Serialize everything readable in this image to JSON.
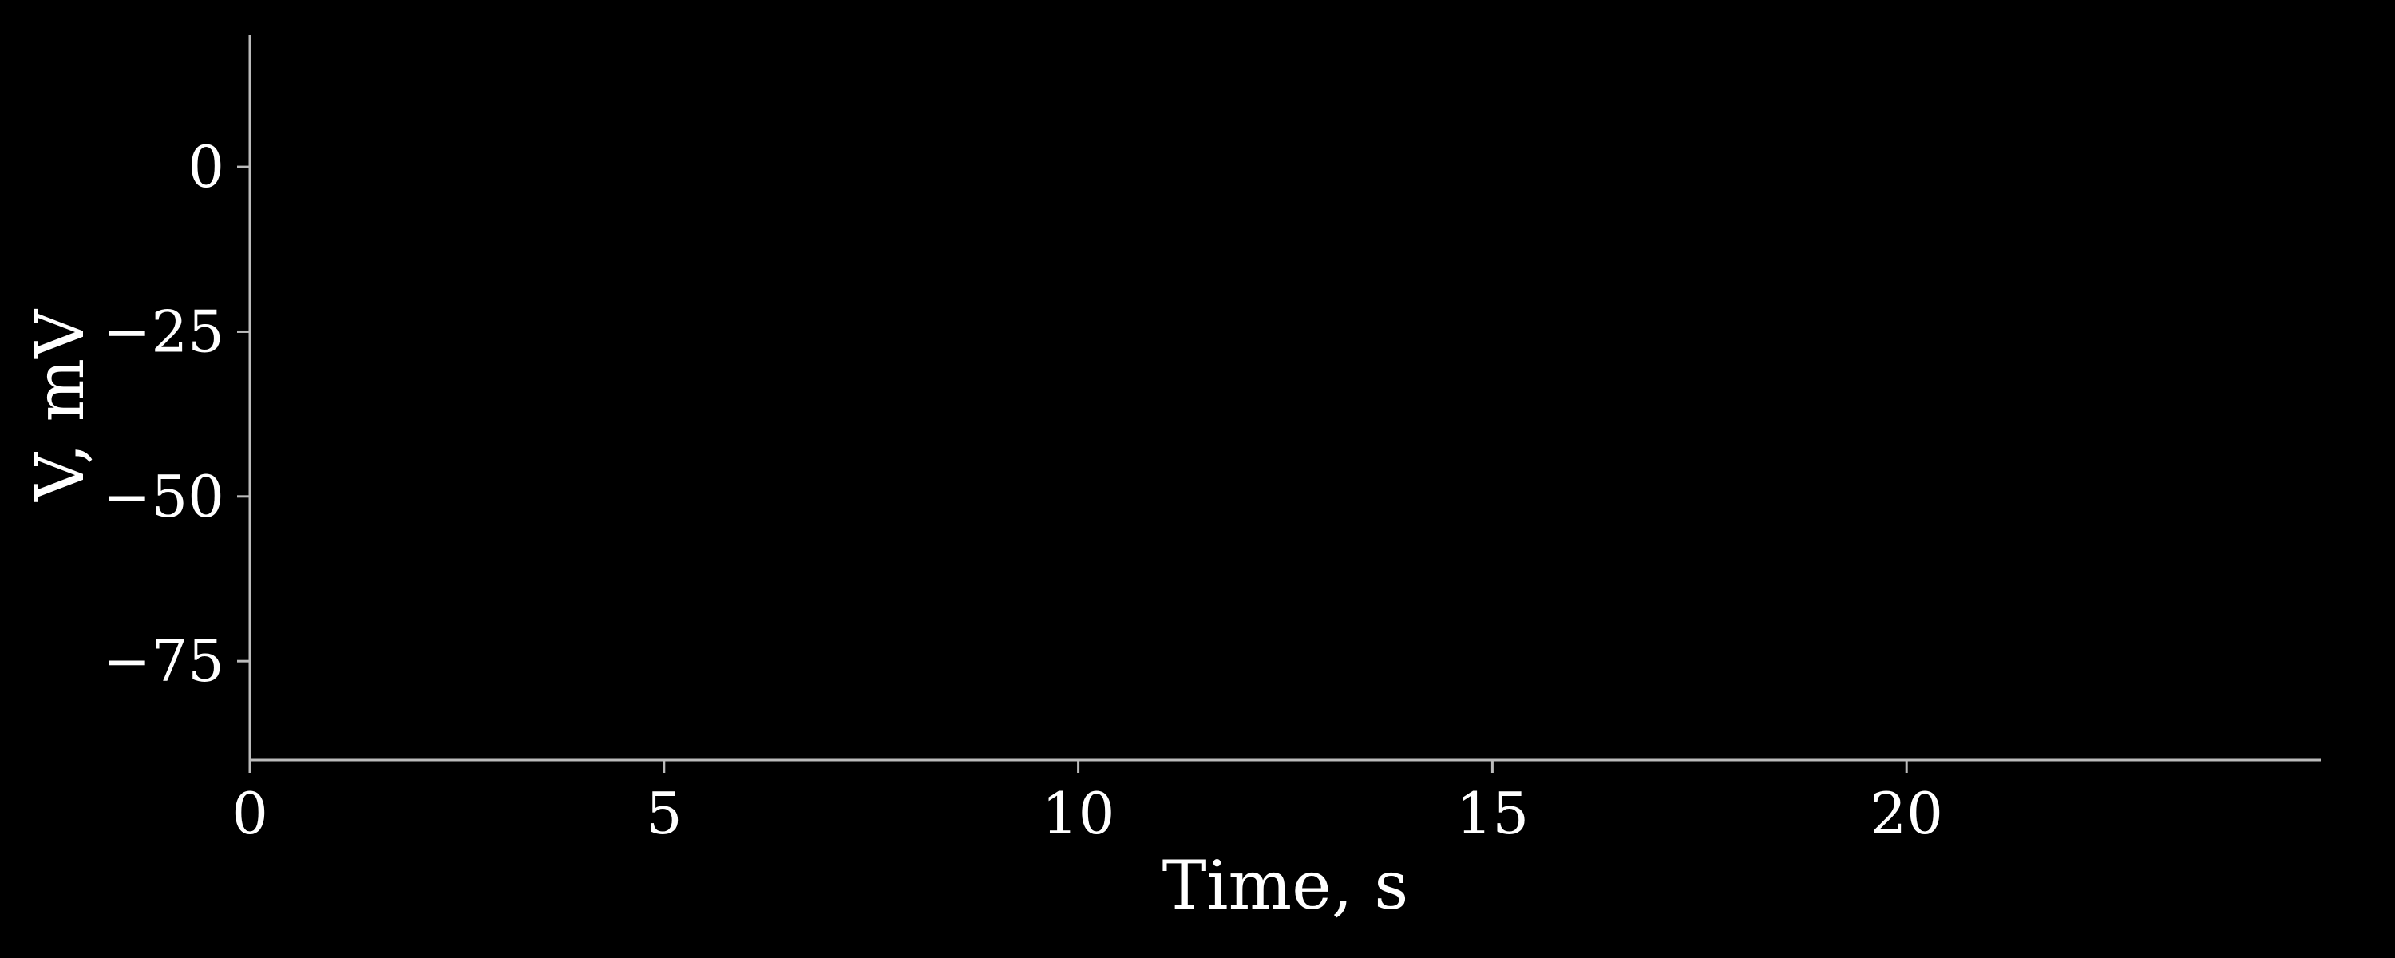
{
  "chart_data": {
    "type": "line",
    "title": "",
    "xlabel": "Time, s",
    "ylabel": "V, mV",
    "xlim": [
      0,
      25
    ],
    "ylim": [
      -90,
      20
    ],
    "xticks": [
      0,
      5,
      10,
      15,
      20
    ],
    "yticks": [
      0,
      -25,
      -50,
      -75
    ],
    "xtick_labels": [
      "0",
      "5",
      "10",
      "15",
      "20"
    ],
    "ytick_labels": [
      "0",
      "−25",
      "−50",
      "−75"
    ],
    "grid": false,
    "series": [],
    "colors": {
      "background": "#000000",
      "axis": "#bbbbbb",
      "text": "#ffffff"
    }
  }
}
